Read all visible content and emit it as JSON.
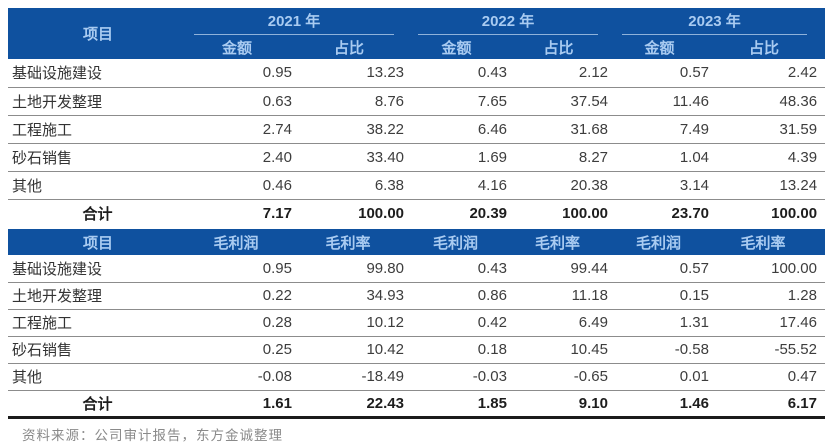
{
  "colors": {
    "header_bg": "#0F519F",
    "header_text": "#A9CBF1",
    "row_divider": "#8c8c8c",
    "bottom_rule": "#1b1b1b",
    "body_text": "#3d3d3d",
    "caption_text": "#8a8a8a"
  },
  "revenue_table": {
    "item_header": "项目",
    "year_groups": [
      {
        "label": "2021 年"
      },
      {
        "label": "2022 年"
      },
      {
        "label": "2023 年"
      }
    ],
    "sub_headers": [
      "金额",
      "占比",
      "金额",
      "占比",
      "金额",
      "占比"
    ],
    "rows": [
      {
        "name": "基础设施建设",
        "values": [
          "0.95",
          "13.23",
          "0.43",
          "2.12",
          "0.57",
          "2.42"
        ]
      },
      {
        "name": "土地开发整理",
        "values": [
          "0.63",
          "8.76",
          "7.65",
          "37.54",
          "11.46",
          "48.36"
        ]
      },
      {
        "name": "工程施工",
        "values": [
          "2.74",
          "38.22",
          "6.46",
          "31.68",
          "7.49",
          "31.59"
        ]
      },
      {
        "name": "砂石销售",
        "values": [
          "2.40",
          "33.40",
          "1.69",
          "8.27",
          "1.04",
          "4.39"
        ]
      },
      {
        "name": "其他",
        "values": [
          "0.46",
          "6.38",
          "4.16",
          "20.38",
          "3.14",
          "13.24"
        ]
      }
    ],
    "total": {
      "name": "合计",
      "values": [
        "7.17",
        "100.00",
        "20.39",
        "100.00",
        "23.70",
        "100.00"
      ]
    }
  },
  "profit_table": {
    "item_header": "项目",
    "col_headers": [
      "毛利润",
      "毛利率",
      "毛利润",
      "毛利率",
      "毛利润",
      "毛利率"
    ],
    "rows": [
      {
        "name": "基础设施建设",
        "values": [
          "0.95",
          "99.80",
          "0.43",
          "99.44",
          "0.57",
          "100.00"
        ]
      },
      {
        "name": "土地开发整理",
        "values": [
          "0.22",
          "34.93",
          "0.86",
          "11.18",
          "0.15",
          "1.28"
        ]
      },
      {
        "name": "工程施工",
        "values": [
          "0.28",
          "10.12",
          "0.42",
          "6.49",
          "1.31",
          "17.46"
        ]
      },
      {
        "name": "砂石销售",
        "values": [
          "0.25",
          "10.42",
          "0.18",
          "10.45",
          "-0.58",
          "-55.52"
        ]
      },
      {
        "name": "其他",
        "values": [
          "-0.08",
          "-18.49",
          "-0.03",
          "-0.65",
          "0.01",
          "0.47"
        ]
      }
    ],
    "total": {
      "name": "合计",
      "values": [
        "1.61",
        "22.43",
        "1.85",
        "9.10",
        "1.46",
        "6.17"
      ]
    }
  },
  "footer": {
    "source_note": "资料来源：公司审计报告，东方金诚整理"
  }
}
